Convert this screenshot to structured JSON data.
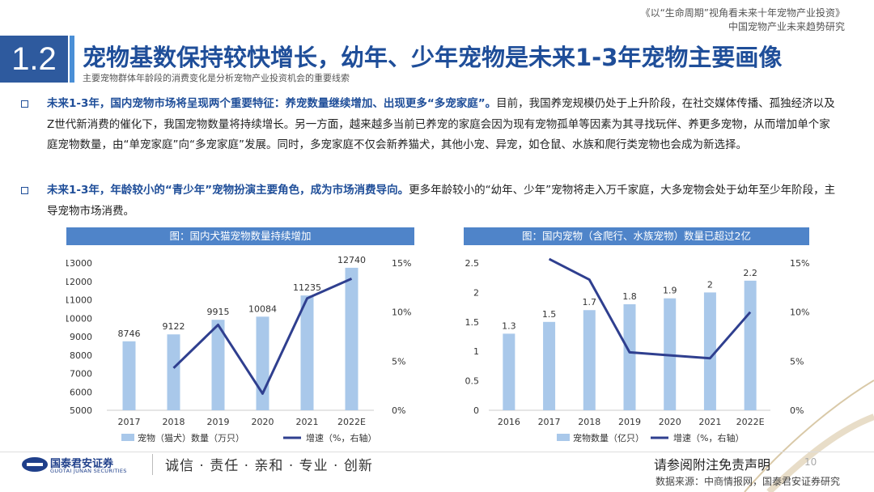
{
  "header": {
    "report_title": "《以“生命周期”视角看未来十年宠物产业投资》",
    "report_subtitle": "中国宠物产业未来趋势研究"
  },
  "section": {
    "number": "1.2",
    "title": "宠物基数保持较快增长，幼年、少年宠物是未来1-3年宠物主要画像",
    "subtitle": "主要宠物群体年龄段的消费变化是分析宠物产业投资机会的重要线索"
  },
  "bullets": [
    {
      "highlight": "未来1-3年，国内宠物市场将呈现两个重要特征：养宠数量继续增加、出现更多“多宠家庭”。",
      "text": "目前，我国养宠规模仍处于上升阶段，在社交媒体传播、孤独经济以及Z世代新消费的催化下，我国宠物数量将持续增长。另一方面，越来越多当前已养宠的家庭会因为现有宠物孤单等因素为其寻找玩伴、养更多宠物，从而增加单个家庭宠物数量，由“单宠家庭”向“多宠家庭”发展。同时，多宠家庭不仅会新养猫犬，其他小宠、异宠，如仓鼠、水族和爬行类宠物也会成为新选择。"
    },
    {
      "highlight": "未来1-3年，年龄较小的“青少年”宠物扮演主要角色，成为市场消费导向。",
      "text": "更多年龄较小的“幼年、少年”宠物将走入万千家庭，大多宠物会处于幼年至少年阶段，主导宠物市场消费。"
    }
  ],
  "colors": {
    "brand": "#2e5a9e",
    "title": "#1f4e99",
    "bar": "#a9c8ea",
    "line": "#2f3f8f",
    "chart_header": "#4f84c9"
  },
  "chart_data": [
    {
      "type": "bar",
      "title": "图：国内犬猫宠物数量持续增加",
      "categories": [
        "2017",
        "2018",
        "2019",
        "2020",
        "2021",
        "2022E"
      ],
      "series": [
        {
          "name": "宠物（猫犬）数量（万只）",
          "type": "bar",
          "axis": "left",
          "values": [
            8746,
            9122,
            9915,
            10084,
            11235,
            12740
          ]
        },
        {
          "name": "增速（%，右轴）",
          "type": "line",
          "axis": "right",
          "values": [
            null,
            4.3,
            8.7,
            1.7,
            11.4,
            13.4
          ]
        }
      ],
      "left_axis": {
        "ticks": [
          "13000",
          "12000",
          "11000",
          "10000",
          "9000",
          "8000",
          "7000",
          "6000",
          "5000"
        ],
        "min": 5000,
        "max": 13000
      },
      "right_axis": {
        "ticks": [
          "15%",
          "10%",
          "5%",
          "0%"
        ],
        "min": 0,
        "max": 15
      }
    },
    {
      "type": "bar",
      "title": "图：国内宠物（含爬行、水族宠物）数量已超过2亿",
      "categories": [
        "2016",
        "2017",
        "2018",
        "2019",
        "2020",
        "2021",
        "2022E"
      ],
      "series": [
        {
          "name": "宠物数量（亿只）",
          "type": "bar",
          "axis": "left",
          "values": [
            1.3,
            1.5,
            1.7,
            1.8,
            1.9,
            2.0,
            2.2
          ]
        },
        {
          "name": "增速（%，右轴）",
          "type": "line",
          "axis": "right",
          "values": [
            null,
            15.4,
            13.3,
            5.9,
            5.6,
            5.3,
            10.0
          ]
        }
      ],
      "bar_labels": [
        "1.3",
        "1.5",
        "1.7",
        "1.8",
        "1.9",
        "2",
        "2.2"
      ],
      "left_axis": {
        "ticks": [
          "2.5",
          "2",
          "1.5",
          "1",
          "0.5",
          "0"
        ],
        "min": 0,
        "max": 2.5
      },
      "right_axis": {
        "ticks": [
          "15%",
          "10%",
          "5%",
          "0%"
        ],
        "min": 0,
        "max": 15
      }
    }
  ],
  "footer": {
    "company_cn": "国泰君安证券",
    "company_en": "GUOTAI JUNAN SECURITIES",
    "slogan": "诚信 · 责任 · 亲和 · 专业 · 创新",
    "disclaimer": "请参阅附注免责声明",
    "page": "10",
    "source": "数据来源：中商情报网，国泰君安证券研究"
  }
}
